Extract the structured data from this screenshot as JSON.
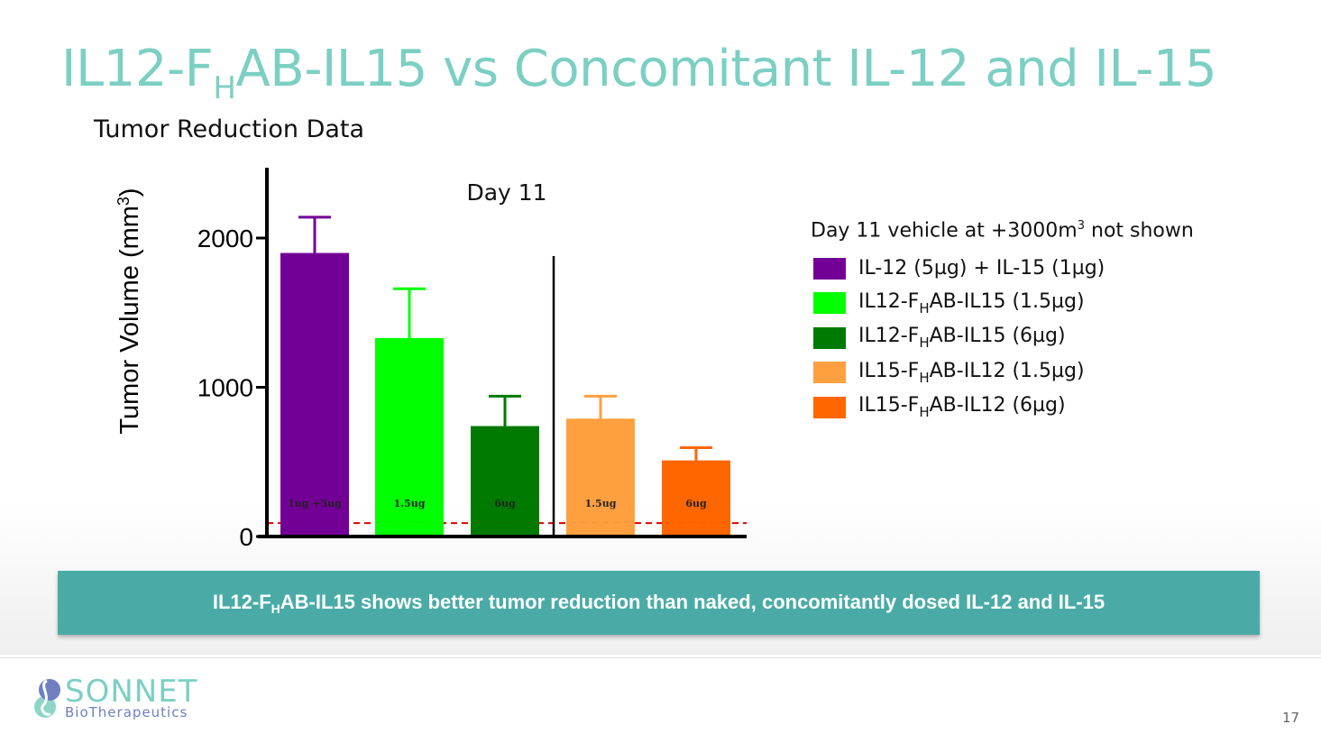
{
  "slide": {
    "title_parts": {
      "pre": "IL12-F",
      "sub": "H",
      "post": "AB-IL15 vs Concomitant IL-12 and IL-15"
    },
    "subtitle": "Tumor Reduction Data",
    "banner_parts": {
      "pre": "IL12-F",
      "sub": "H",
      "post": "AB-IL15 shows better tumor reduction than naked, concomitantly dosed IL-12 and IL-15"
    },
    "page_number": "17",
    "logo": {
      "name": "SONNET",
      "tagline": "BioTherapeutics"
    }
  },
  "legend": {
    "note_pre": "Day 11 vehicle at +3000m",
    "note_sup": "3",
    "note_post": " not shown",
    "items": [
      {
        "pre": "IL-12 (5µg) + IL-15 (1µg)",
        "sub": "",
        "post": "",
        "color": "#730096"
      },
      {
        "pre": "IL12-F",
        "sub": "H",
        "post": "AB-IL15 (1.5µg)",
        "color": "#00ff00"
      },
      {
        "pre": "IL12-F",
        "sub": "H",
        "post": "AB-IL15 (6µg)",
        "color": "#007a00"
      },
      {
        "pre": "IL15-F",
        "sub": "H",
        "post": "AB-IL12 (1.5µg)",
        "color": "#ffa040"
      },
      {
        "pre": "IL15-F",
        "sub": "H",
        "post": "AB-IL12 (6µg)",
        "color": "#ff6600"
      }
    ]
  },
  "chart_data": {
    "type": "bar",
    "title": "Day 11",
    "xlabel": "",
    "ylabel": "Tumor Volume (mm³)",
    "ylim": [
      0,
      2500
    ],
    "yticks": [
      0,
      1000,
      2000
    ],
    "categories": [
      "1ug +5ug",
      "1.5ug",
      "6ug",
      "1.5ug",
      "6ug"
    ],
    "series": [
      {
        "name": "IL-12 (5µg) + IL-15 (1µg)",
        "value": 1900,
        "error_upper": 2140,
        "color": "#730096"
      },
      {
        "name": "IL12-FHAB-IL15 (1.5µg)",
        "value": 1330,
        "error_upper": 1660,
        "color": "#00ff00"
      },
      {
        "name": "IL12-FHAB-IL15 (6µg)",
        "value": 740,
        "error_upper": 940,
        "color": "#007a00"
      },
      {
        "name": "IL15-FHAB-IL12 (1.5µg)",
        "value": 790,
        "error_upper": 940,
        "color": "#ffa040"
      },
      {
        "name": "IL15-FHAB-IL12 (6µg)",
        "value": 510,
        "error_upper": 595,
        "color": "#ff6600"
      }
    ],
    "reference_line": {
      "value": 90,
      "style": "dashed",
      "color": "#dd0000"
    },
    "group_divider_after_index": 2,
    "grid": false,
    "legend_position": "right"
  }
}
